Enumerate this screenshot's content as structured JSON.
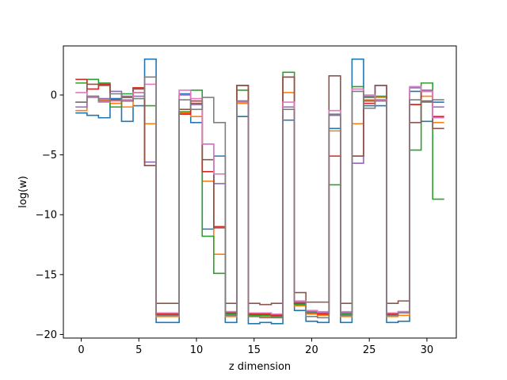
{
  "chart_data": {
    "type": "line",
    "drawstyle": "steps-mid",
    "title": "",
    "xlabel": "z dimension",
    "ylabel": "log(w)",
    "xlim": [
      -1.55,
      32.55
    ],
    "ylim": [
      -20.3,
      4.1
    ],
    "xticks": [
      0,
      5,
      10,
      15,
      20,
      25,
      30
    ],
    "yticks": [
      -20,
      -15,
      -10,
      -5,
      0
    ],
    "grid": false,
    "legend": "none",
    "x": [
      0,
      1,
      2,
      3,
      4,
      5,
      6,
      7,
      8,
      9,
      10,
      11,
      12,
      13,
      14,
      15,
      16,
      17,
      18,
      19,
      20,
      21,
      22,
      23,
      24,
      25,
      26,
      27,
      28,
      29,
      30,
      31
    ],
    "series": [
      {
        "color": "#1f77b4",
        "values": [
          -1.5,
          -1.7,
          -1.9,
          -0.3,
          -2.2,
          -0.9,
          3.0,
          -19.0,
          -19.0,
          0.1,
          -2.3,
          -11.2,
          -5.1,
          -19.0,
          -1.8,
          -19.1,
          -19.0,
          -19.1,
          -2.1,
          -18.0,
          -18.9,
          -19.0,
          -2.8,
          -19.0,
          3.0,
          -0.9,
          -0.9,
          -19.0,
          -18.9,
          0.3,
          -2.2,
          -0.6
        ]
      },
      {
        "color": "#ff7f0e",
        "values": [
          -1.3,
          -0.2,
          -0.4,
          -0.7,
          -1.0,
          0.6,
          -2.4,
          -18.5,
          -18.5,
          -1.5,
          -1.8,
          -7.2,
          -13.3,
          -18.5,
          -0.7,
          -18.5,
          -18.5,
          -18.6,
          0.2,
          -17.6,
          -18.3,
          -18.4,
          -3.0,
          -18.5,
          -2.4,
          -0.4,
          -0.2,
          -18.5,
          -18.4,
          -0.8,
          -0.1,
          -2.3
        ]
      },
      {
        "color": "#2ca02c",
        "values": [
          1.0,
          1.3,
          1.0,
          -1.0,
          0.1,
          0.2,
          -0.9,
          -18.3,
          -18.3,
          -1.4,
          0.4,
          -11.8,
          -14.9,
          -18.3,
          0.4,
          -18.4,
          -18.4,
          -18.5,
          1.9,
          -17.5,
          -18.2,
          -18.3,
          -7.5,
          -18.3,
          0.7,
          -0.2,
          -0.1,
          -18.3,
          -18.2,
          -4.6,
          1.0,
          -8.7
        ]
      },
      {
        "color": "#d62728",
        "values": [
          1.3,
          0.5,
          0.9,
          -0.4,
          -0.5,
          0.6,
          -5.9,
          -18.3,
          -18.3,
          -1.6,
          -0.5,
          -6.4,
          -11.0,
          -18.2,
          0.8,
          -18.3,
          -18.3,
          -18.4,
          1.5,
          -17.4,
          -18.1,
          -18.3,
          -5.1,
          -18.2,
          -5.1,
          -0.7,
          -0.4,
          -18.3,
          -18.2,
          -0.8,
          0.3,
          -1.8
        ]
      },
      {
        "color": "#9467bd",
        "values": [
          -1.0,
          -0.1,
          -0.3,
          0.3,
          -0.1,
          -0.1,
          -5.6,
          -18.2,
          -18.2,
          0.0,
          -0.8,
          -4.1,
          -7.4,
          -18.1,
          -0.5,
          -18.2,
          -18.2,
          -18.3,
          -1.0,
          -17.3,
          -18.1,
          -18.2,
          -1.7,
          -18.2,
          -5.7,
          -0.1,
          0.8,
          -18.2,
          -18.1,
          0.6,
          0.4,
          -1.0
        ]
      },
      {
        "color": "#8c564b",
        "values": [
          -0.6,
          0.9,
          0.8,
          -0.4,
          -0.2,
          0.5,
          -5.9,
          -17.4,
          -17.4,
          -1.2,
          -0.7,
          -5.4,
          -11.1,
          -17.4,
          0.8,
          -17.4,
          -17.5,
          -17.4,
          1.5,
          -16.5,
          -17.3,
          -17.3,
          1.6,
          -17.4,
          -5.1,
          -0.5,
          0.8,
          -17.4,
          -17.2,
          -2.3,
          -0.5,
          -2.8
        ]
      },
      {
        "color": "#e377c2",
        "values": [
          0.2,
          -0.2,
          -0.6,
          -0.5,
          -0.4,
          0.2,
          0.9,
          -18.2,
          -18.2,
          0.4,
          -0.3,
          -4.1,
          -6.6,
          -18.1,
          -0.6,
          -18.2,
          -18.2,
          -18.3,
          -0.6,
          -17.2,
          -18.0,
          -18.1,
          -1.3,
          -18.1,
          0.5,
          0.0,
          -0.4,
          -18.2,
          -18.1,
          0.7,
          0.3,
          -1.9
        ]
      },
      {
        "color": "#7f7f7f",
        "values": [
          -0.6,
          -0.1,
          -0.5,
          0.1,
          -0.5,
          -0.3,
          1.5,
          -18.4,
          -18.4,
          -0.4,
          -1.2,
          -0.2,
          -2.3,
          -18.4,
          -0.5,
          -18.5,
          -18.6,
          -18.6,
          -1.2,
          -17.3,
          -18.5,
          -18.6,
          -1.6,
          -18.4,
          0.3,
          -1.1,
          -0.5,
          -18.4,
          -18.2,
          -0.4,
          -0.6,
          -0.4
        ]
      }
    ]
  }
}
